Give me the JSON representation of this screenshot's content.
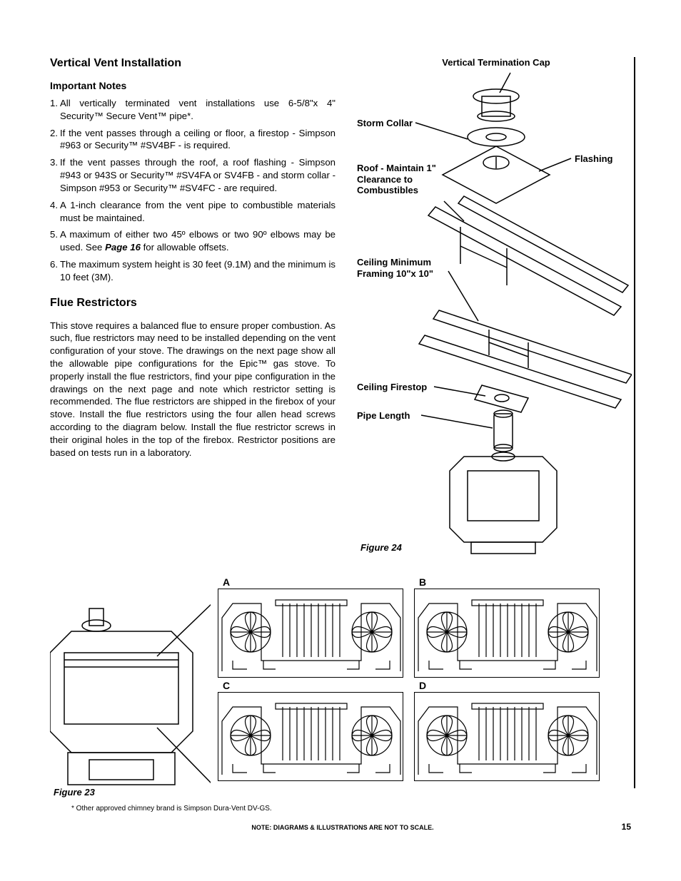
{
  "left": {
    "title": "Vertical Vent Installation",
    "notes_heading": "Important Notes",
    "notes": [
      "All vertically terminated vent installations use 6-5/8\"x 4\" Security™ Secure Vent™ pipe*.",
      "If the vent passes through a ceiling or floor, a firestop - Simpson #963 or Security™ #SV4BF -  is required.",
      "If the vent passes through the roof, a roof flashing - Simpson #943 or 943S or Security™ #SV4FA or SV4FB - and storm collar -  Simpson #953 or Security™ #SV4FC - are required.",
      "A 1-inch clearance from the vent pipe to combustible materials must be maintained.",
      "A maximum of either two 45º elbows or two 90º elbows may be used. See |Page 16| for allowable offsets.",
      "The maximum system height is 30 feet (9.1M) and the minimum is 10 feet (3M)."
    ],
    "flue_heading": "Flue Restrictors",
    "flue_body": "This stove requires a balanced flue to ensure proper combustion. As such, flue restrictors may need to be installed depending on the vent configuration of your stove. The drawings on the next page show all the allowable pipe configurations for the Epic™ gas stove. To properly install the flue restrictors, find your pipe configuration in the drawings on the next page and note which restrictor setting is recommended. The flue restrictors are shipped in the firebox of your stove. Install the flue restrictors using the four allen head screws according to the diagram below. Install the flue restrictor screws in their original holes in the top of the firebox. Restrictor positions are based on tests run in a laboratory."
  },
  "fig24": {
    "labels": {
      "cap": "Vertical Termination Cap",
      "storm": "Storm Collar",
      "flash": "Flashing",
      "roof": "Roof - Maintain 1\" Clearance to Combustibles",
      "framing": "Ceiling Minimum Framing 10\"x 10\"",
      "firestop": "Ceiling Firestop",
      "pipe": "Pipe Length"
    },
    "caption": "Figure 24"
  },
  "fig23": {
    "caption": "Figure 23",
    "panels": {
      "a": "A",
      "b": "B",
      "c": "C",
      "d": "D"
    }
  },
  "footnote": "* Other approved chimney brand is Simpson Dura-Vent DV-GS.",
  "scale_note": "NOTE: DIAGRAMS & ILLUSTRATIONS ARE NOT TO SCALE.",
  "page_number": "15"
}
